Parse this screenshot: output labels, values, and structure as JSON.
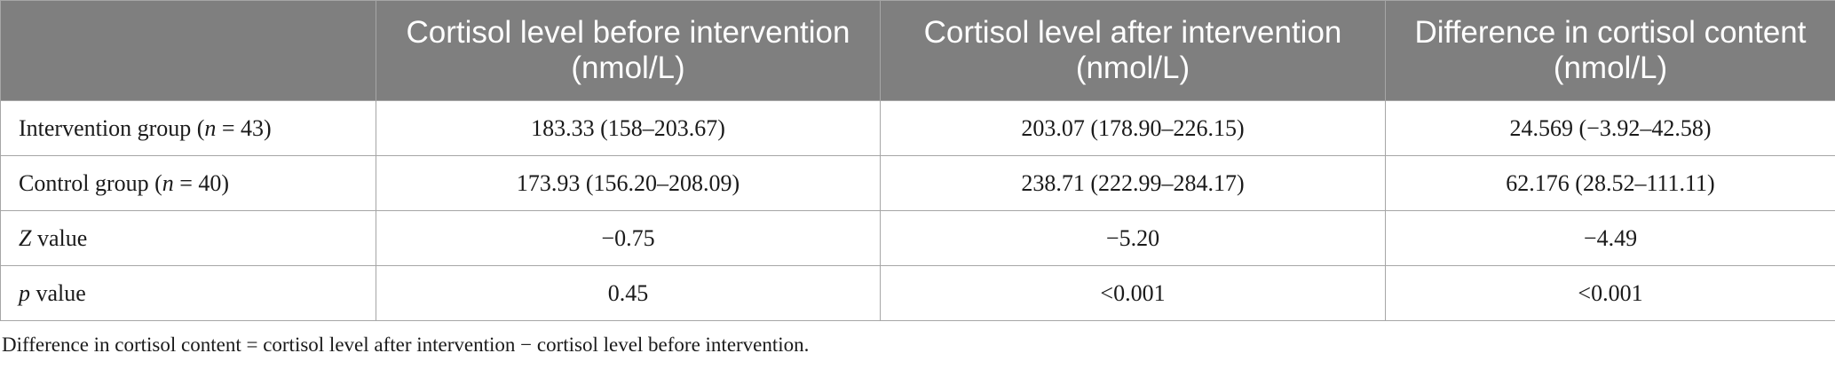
{
  "table": {
    "headers": [
      "",
      "Cortisol level before intervention (nmol/L)",
      "Cortisol level after intervention (nmol/L)",
      "Difference in cortisol content (nmol/L)"
    ],
    "rows": [
      {
        "label_prefix": "Intervention group (",
        "label_italic": "n",
        "label_suffix": " = 43)",
        "cells": [
          "183.33 (158–203.67)",
          "203.07 (178.90–226.15)",
          "24.569 (−3.92–42.58)"
        ]
      },
      {
        "label_prefix": "Control group (",
        "label_italic": "n",
        "label_suffix": " = 40)",
        "cells": [
          "173.93 (156.20–208.09)",
          "238.71 (222.99–284.17)",
          "62.176 (28.52–111.11)"
        ]
      },
      {
        "label_prefix": "",
        "label_italic": "Z",
        "label_suffix": " value",
        "cells": [
          "−0.75",
          "−5.20",
          "−4.49"
        ]
      },
      {
        "label_prefix": "",
        "label_italic": "p",
        "label_suffix": " value",
        "cells": [
          "0.45",
          "<0.001",
          "<0.001"
        ]
      }
    ]
  },
  "footnote": "Difference in cortisol content = cortisol level after intervention − cortisol level before intervention."
}
